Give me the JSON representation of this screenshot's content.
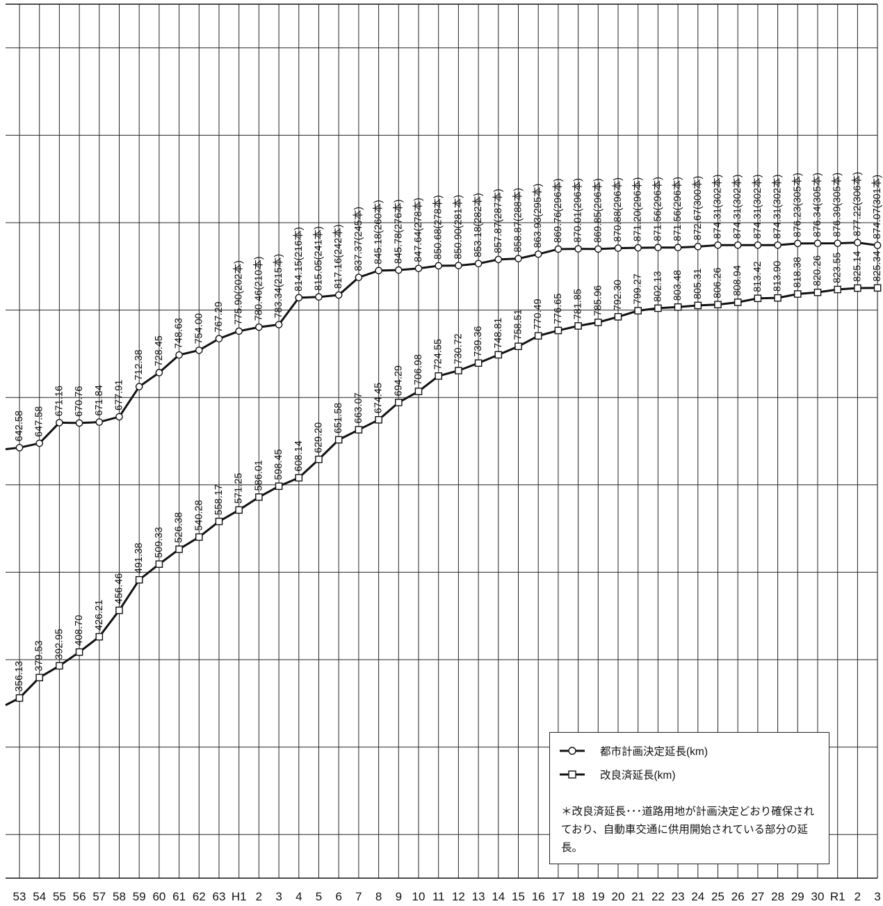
{
  "chart_data": {
    "type": "line",
    "x": [
      "53",
      "54",
      "55",
      "56",
      "57",
      "58",
      "59",
      "60",
      "61",
      "62",
      "63",
      "H1",
      "2",
      "3",
      "4",
      "5",
      "6",
      "7",
      "8",
      "9",
      "10",
      "11",
      "12",
      "13",
      "14",
      "15",
      "16",
      "17",
      "18",
      "19",
      "20",
      "21",
      "22",
      "23",
      "24",
      "25",
      "26",
      "27",
      "28",
      "29",
      "30",
      "R1",
      "2",
      "3"
    ],
    "ylim": [
      150,
      1150
    ],
    "grid": true,
    "legend_position": "bottom-right",
    "series": [
      {
        "name": "都市計画決定延長(km)",
        "marker": "circle",
        "values": [
          642.58,
          647.58,
          671.16,
          670.76,
          671.84,
          677.91,
          712.38,
          728.45,
          748.63,
          754.0,
          767.29,
          775.9,
          780.46,
          783.34,
          814.15,
          815.05,
          817.16,
          837.37,
          845.18,
          845.78,
          847.64,
          850.68,
          850.9,
          853.18,
          857.87,
          858.87,
          863.93,
          869.76,
          870.01,
          869.85,
          870.88,
          871.2,
          871.56,
          871.56,
          872.67,
          874.31,
          874.31,
          874.31,
          874.31,
          876.23,
          876.34,
          876.39,
          877.22,
          874.07
        ],
        "labels": [
          "642.58",
          "647.58",
          "671.16",
          "670.76",
          "671.84",
          "677.91",
          "712.38",
          "728.45",
          "748.63",
          "754.00",
          "767.29",
          "775.90(202本)",
          "780.46(210本)",
          "783.34(215本)",
          "814.15(216本)",
          "815.05(241本)",
          "817.16(242本)",
          "837.37(245本)",
          "845.18(260本)",
          "845.78(276本)",
          "847.64(278本)",
          "850.68(278本)",
          "850.90(281本)",
          "853.18(282本)",
          "857.87(287本)",
          "858.87(288本)",
          "863.93(295本)",
          "869.76(296本)",
          "870.01(296本)",
          "869.85(296本)",
          "870.88(296本)",
          "871.20(296本)",
          "871.56(296本)",
          "871.56(296本)",
          "872.67(300本)",
          "874.31(302本)",
          "874.31(302本)",
          "874.31(302本)",
          "874.31(302本)",
          "876.23(305本)",
          "876.34(305本)",
          "876.39(305本)",
          "877.22(306本)",
          "874.07(301本)"
        ]
      },
      {
        "name": "改良済延長(km)",
        "marker": "square",
        "values": [
          356.13,
          379.53,
          392.95,
          408.7,
          426.21,
          456.46,
          491.38,
          509.33,
          526.38,
          540.28,
          558.17,
          571.25,
          586.01,
          598.45,
          608.14,
          629.2,
          651.58,
          663.07,
          674.45,
          694.29,
          706.98,
          724.55,
          730.72,
          739.36,
          748.81,
          758.51,
          770.49,
          776.65,
          781.85,
          785.96,
          792.3,
          799.27,
          802.13,
          803.48,
          805.31,
          806.26,
          808.94,
          813.42,
          813.9,
          818.38,
          820.26,
          823.55,
          825.14,
          825.34
        ],
        "labels": [
          "356.13",
          "379.53",
          "392.95",
          "408.70",
          "426.21",
          "456.46",
          "491.38",
          "509.33",
          "526.38",
          "540.28",
          "558.17",
          "571.25",
          "586.01",
          "598.45",
          "608.14",
          "629.20",
          "651.58",
          "663.07",
          "674.45",
          "694.29",
          "706.98",
          "724.55",
          "730.72",
          "739.36",
          "748.81",
          "758.51",
          "770.49",
          "776.65",
          "781.85",
          "785.96",
          "792.30",
          "799.27",
          "802.13",
          "803.48",
          "805.31",
          "806.26",
          "808.94",
          "813.42",
          "813.90",
          "818.38",
          "820.26",
          "823.55",
          "825.14",
          "825.34"
        ]
      }
    ],
    "note": "＊改良済延長･･･道路用地が計画決定どおり確保されており、自動車交通に供用開始されている部分の延長。"
  }
}
